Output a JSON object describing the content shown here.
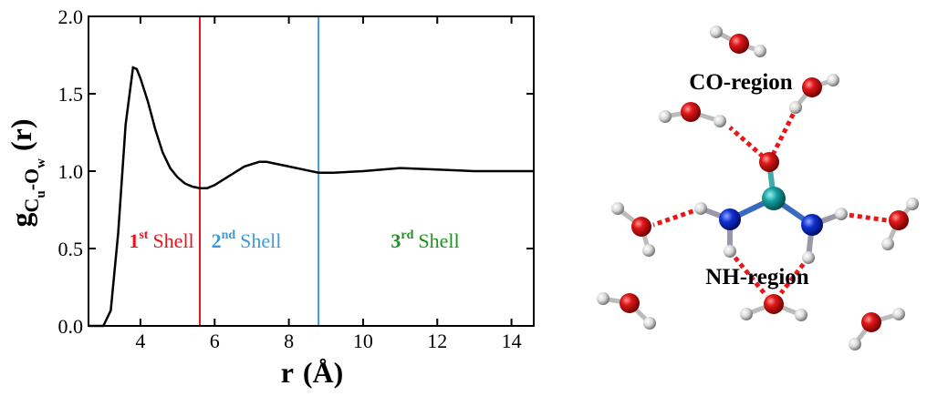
{
  "chart_data": {
    "type": "line",
    "xlabel": {
      "main": "r",
      "unit": "(Å)"
    },
    "ylabel": {
      "main": "g",
      "sub1": "C",
      "subsub1": "u",
      "sub2": "-O",
      "subsub2": "w",
      "tail": "(r)"
    },
    "x": [
      2.6,
      3.0,
      3.2,
      3.4,
      3.6,
      3.8,
      3.9,
      4.0,
      4.2,
      4.4,
      4.6,
      4.8,
      5.0,
      5.2,
      5.4,
      5.6,
      5.8,
      6.0,
      6.4,
      6.8,
      7.2,
      7.4,
      7.6,
      8.0,
      8.4,
      8.8,
      9.2,
      10,
      11,
      12,
      13,
      14,
      14.6
    ],
    "values": [
      0,
      0,
      0.1,
      0.6,
      1.3,
      1.67,
      1.66,
      1.6,
      1.45,
      1.27,
      1.12,
      1.02,
      0.96,
      0.92,
      0.9,
      0.89,
      0.89,
      0.91,
      0.97,
      1.03,
      1.06,
      1.06,
      1.05,
      1.03,
      1.01,
      0.99,
      0.99,
      1.0,
      1.02,
      1.01,
      1.0,
      1.0,
      1.0
    ],
    "color": "#000000",
    "xlim": [
      2.6,
      14.6
    ],
    "xticks": [
      4,
      6,
      8,
      10,
      12,
      14
    ],
    "ylim": [
      0,
      2
    ],
    "yticks": [
      {
        "value": 0,
        "label": "0.0"
      },
      {
        "value": 0.5,
        "label": "0.5"
      },
      {
        "value": 1,
        "label": "1.0"
      },
      {
        "value": 1.5,
        "label": "1.5"
      },
      {
        "value": 2,
        "label": "2.0"
      }
    ],
    "vlines": [
      {
        "x": 5.6,
        "color": "#e8141e"
      },
      {
        "x": 8.8,
        "color": "#3b9bd3"
      }
    ],
    "shell_labels": [
      {
        "number": "1",
        "suffix": "st",
        "word": "Shell",
        "color": "#e8141e"
      },
      {
        "number": "2",
        "suffix": "nd",
        "word": "Shell",
        "color": "#3b9bd3"
      },
      {
        "number": "3",
        "suffix": "rd",
        "word": "Shell",
        "color": "#1f8f1f"
      }
    ]
  },
  "diagram": {
    "labels": [
      "CO-region",
      "NH-region"
    ]
  }
}
